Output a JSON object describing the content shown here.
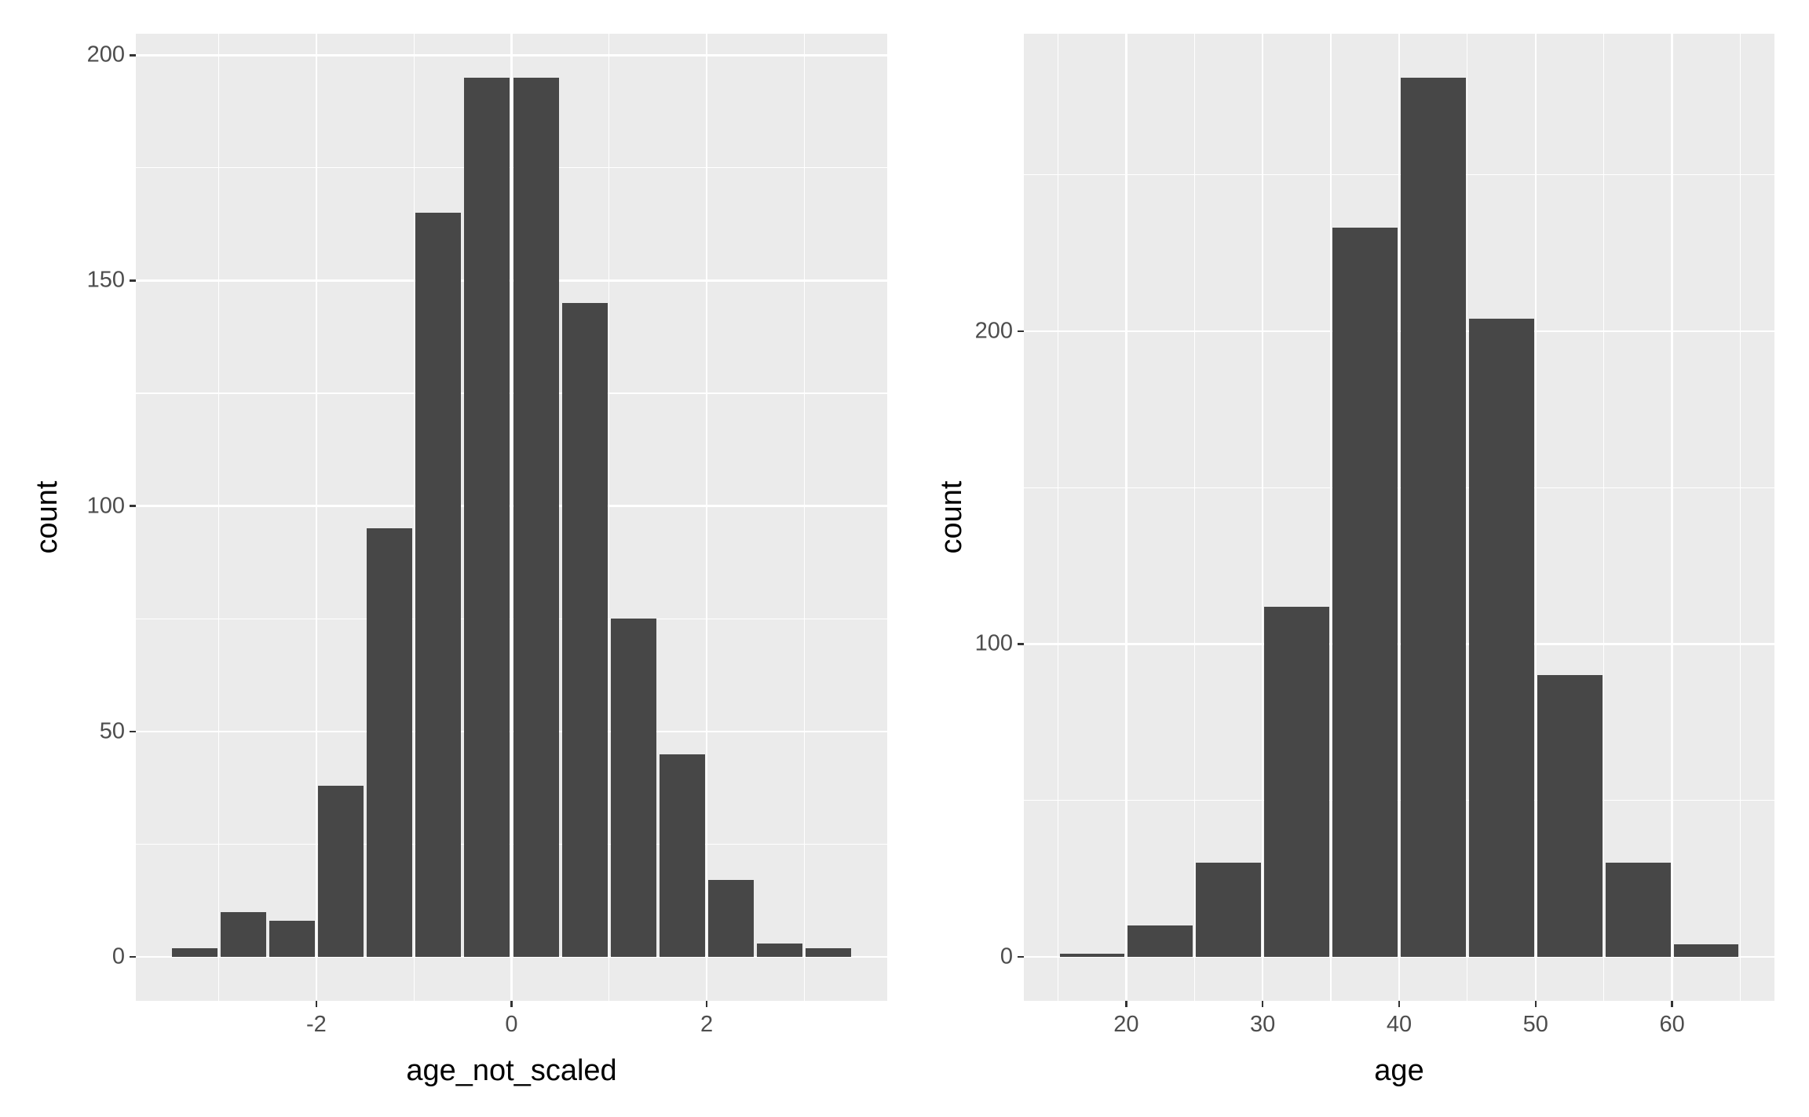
{
  "style": {
    "background": "#FFFFFF",
    "panel_bg": "#EBEBEB",
    "bar_fill": "#474747",
    "grid_color": "#FFFFFF",
    "tick_color": "#333333",
    "tick_label_color": "#4D4D4D",
    "axis_title_color": "#000000"
  },
  "chart_data": [
    {
      "type": "bar",
      "title": "",
      "xlabel": "age_not_scaled",
      "ylabel": "count",
      "bin_start": -3.5,
      "bin_width": 0.5,
      "bin_edges": [
        -3.5,
        -3.0,
        -2.5,
        -2.0,
        -1.5,
        -1.0,
        -0.5,
        0.0,
        0.5,
        1.0,
        1.5,
        2.0,
        2.5,
        3.0,
        3.5
      ],
      "counts": [
        2,
        10,
        8,
        38,
        95,
        165,
        195,
        195,
        145,
        75,
        45,
        17,
        3,
        2
      ],
      "xlim": [
        -3.85,
        3.85
      ],
      "ylim": [
        -9.75,
        204.75
      ],
      "x_ticks": {
        "values": [
          -2,
          0,
          2
        ],
        "labels": [
          "-2",
          "0",
          "2"
        ]
      },
      "x_minor_ticks": [
        -3,
        -1,
        1,
        3
      ],
      "y_ticks": {
        "values": [
          0,
          50,
          100,
          150,
          200
        ],
        "labels": [
          "0",
          "50",
          "100",
          "150",
          "200"
        ]
      },
      "y_minor_ticks": [
        25,
        75,
        125,
        175
      ],
      "grid": "on",
      "legend": "none"
    },
    {
      "type": "bar",
      "title": "",
      "xlabel": "age",
      "ylabel": "count",
      "bin_start": 15,
      "bin_width": 5,
      "bin_edges": [
        15,
        20,
        25,
        30,
        35,
        40,
        45,
        50,
        55,
        60,
        65
      ],
      "counts": [
        1,
        10,
        30,
        112,
        233,
        281,
        204,
        90,
        30,
        4
      ],
      "xlim": [
        12.5,
        67.5
      ],
      "ylim": [
        -14.05,
        295.05
      ],
      "x_ticks": {
        "values": [
          20,
          30,
          40,
          50,
          60
        ],
        "labels": [
          "20",
          "30",
          "40",
          "50",
          "60"
        ]
      },
      "x_minor_ticks": [
        15,
        25,
        35,
        45,
        55,
        65
      ],
      "y_ticks": {
        "values": [
          0,
          100,
          200
        ],
        "labels": [
          "0",
          "100",
          "200"
        ]
      },
      "y_minor_ticks": [
        50,
        150,
        250
      ],
      "grid": "on",
      "legend": "none"
    }
  ]
}
